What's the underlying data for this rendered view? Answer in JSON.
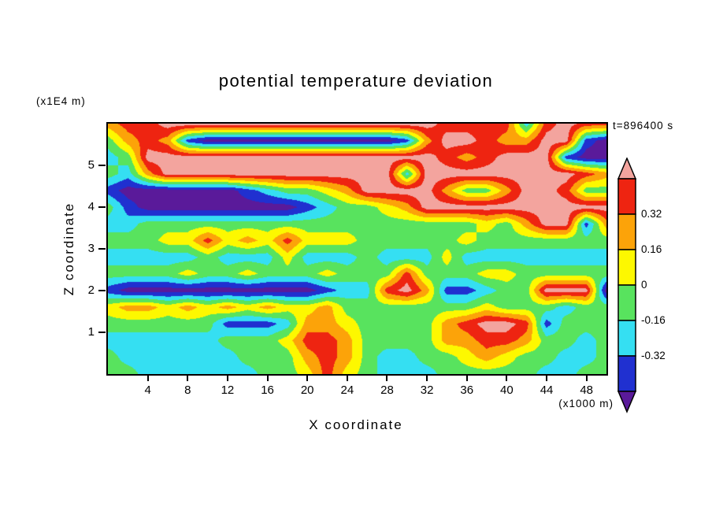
{
  "chart": {
    "title": "potential temperature deviation",
    "timestamp": "t=896400 s"
  },
  "axes": {
    "x": {
      "label": "X coordinate",
      "unit": "(x1000 m)",
      "ticks": [
        4,
        8,
        12,
        16,
        20,
        24,
        28,
        32,
        36,
        40,
        44,
        48
      ],
      "range": [
        0,
        50
      ]
    },
    "y": {
      "label": "Z coordinate",
      "unit": "(x1E4 m)",
      "ticks": [
        1,
        2,
        3,
        4,
        5
      ],
      "range": [
        0,
        6
      ]
    }
  },
  "colorbar": {
    "labels": [
      "0.32",
      "0.16",
      "0",
      "-0.16",
      "-0.32"
    ],
    "segment_colors_top_to_bottom": [
      "#ee2411",
      "#fca309",
      "#fdf800",
      "#58e35e",
      "#35dff2",
      "#2030d0"
    ],
    "arrow_top_color": "#f3a49e",
    "arrow_bottom_color": "#5a1a9a"
  },
  "chart_data": {
    "type": "heatmap",
    "title": "potential temperature deviation",
    "xlabel": "X coordinate",
    "ylabel": "Z coordinate",
    "x_unit": "x1000 m",
    "z_unit": "x1E4 m",
    "timestamp_s": 896400,
    "x_range": [
      0,
      50
    ],
    "z_range": [
      0,
      6
    ],
    "levels": [
      -0.48,
      -0.32,
      -0.16,
      0,
      0.16,
      0.32,
      0.48
    ],
    "level_colors_low_to_high": [
      "#5a1a9a",
      "#2030d0",
      "#35dff2",
      "#58e35e",
      "#fdf800",
      "#fca309",
      "#ee2411",
      "#f3a49e"
    ],
    "grid_x": [
      0,
      2,
      4,
      6,
      8,
      10,
      12,
      14,
      16,
      18,
      20,
      22,
      24,
      26,
      28,
      30,
      32,
      34,
      36,
      38,
      40,
      42,
      44,
      46,
      48,
      50
    ],
    "grid_z_top_to_bottom": [
      5.9,
      5.45,
      5.0,
      4.55,
      4.2,
      3.85,
      3.5,
      3.1,
      2.8,
      2.45,
      2.1,
      1.7,
      1.3,
      0.85,
      0.45,
      0.05
    ],
    "values": [
      [
        0.24,
        0.4,
        0.4,
        0.56,
        0.56,
        0.56,
        0.56,
        0.56,
        0.56,
        0.56,
        0.56,
        0.56,
        0.56,
        0.56,
        0.56,
        0.56,
        0.56,
        0.4,
        0.4,
        0.4,
        0.4,
        -0.24,
        0.4,
        0.56,
        0.4,
        0.4
      ],
      [
        -0.08,
        0.24,
        0.4,
        0.24,
        -0.4,
        -0.56,
        -0.56,
        -0.56,
        -0.56,
        -0.56,
        -0.56,
        -0.56,
        -0.56,
        -0.56,
        -0.56,
        -0.4,
        0.24,
        0.56,
        0.56,
        0.4,
        0.24,
        0.24,
        0.56,
        0.56,
        -0.4,
        -0.56
      ],
      [
        -0.24,
        -0.08,
        0.56,
        0.56,
        0.56,
        0.56,
        0.56,
        0.56,
        0.56,
        0.56,
        0.56,
        0.56,
        0.56,
        0.56,
        0.56,
        0.56,
        0.56,
        0.4,
        0.24,
        0.4,
        0.56,
        0.56,
        0.56,
        -0.4,
        -0.56,
        -0.56
      ],
      [
        -0.08,
        -0.24,
        0.24,
        0.56,
        0.56,
        0.56,
        0.56,
        0.56,
        0.56,
        0.56,
        0.56,
        0.56,
        0.56,
        0.56,
        0.56,
        -0.24,
        0.56,
        0.56,
        0.56,
        0.56,
        0.56,
        0.56,
        0.56,
        0.56,
        0.4,
        0.24
      ],
      [
        -0.4,
        -0.56,
        -0.56,
        -0.56,
        -0.56,
        -0.56,
        -0.56,
        -0.4,
        -0.24,
        -0.08,
        -0.08,
        0.08,
        0.24,
        0.56,
        0.56,
        0.56,
        0.56,
        0.24,
        -0.08,
        -0.08,
        0.24,
        0.56,
        0.56,
        0.4,
        -0.08,
        -0.08
      ],
      [
        -0.08,
        -0.4,
        -0.56,
        -0.56,
        -0.56,
        -0.56,
        -0.56,
        -0.56,
        -0.56,
        -0.56,
        -0.4,
        -0.24,
        -0.08,
        -0.08,
        0.08,
        0.24,
        0.56,
        0.56,
        0.56,
        0.56,
        0.56,
        0.56,
        0.56,
        0.56,
        0.56,
        0.56
      ],
      [
        -0.24,
        -0.24,
        -0.08,
        -0.08,
        -0.08,
        -0.08,
        -0.08,
        -0.08,
        -0.08,
        -0.08,
        -0.08,
        -0.08,
        -0.08,
        -0.08,
        -0.08,
        -0.08,
        -0.08,
        -0.08,
        -0.08,
        0.08,
        -0.08,
        0.24,
        0.56,
        0.56,
        -0.4,
        0.24
      ],
      [
        -0.08,
        -0.08,
        -0.08,
        0.08,
        0.08,
        0.4,
        0.08,
        0.24,
        0.08,
        0.4,
        0.08,
        0.08,
        0.08,
        -0.08,
        -0.08,
        -0.08,
        -0.08,
        -0.08,
        0.08,
        -0.08,
        -0.08,
        -0.08,
        -0.08,
        -0.08,
        -0.08,
        -0.08
      ],
      [
        -0.24,
        -0.24,
        -0.24,
        -0.24,
        -0.24,
        -0.08,
        -0.24,
        -0.24,
        -0.24,
        0.08,
        -0.24,
        -0.24,
        -0.24,
        -0.08,
        -0.24,
        -0.24,
        -0.24,
        0.08,
        -0.24,
        -0.24,
        -0.24,
        -0.24,
        -0.24,
        -0.24,
        -0.24,
        -0.24
      ],
      [
        -0.08,
        -0.08,
        -0.08,
        -0.08,
        0.08,
        -0.08,
        -0.08,
        0.08,
        -0.08,
        -0.08,
        -0.08,
        0.08,
        -0.08,
        -0.08,
        -0.08,
        0.4,
        -0.08,
        -0.08,
        -0.08,
        0.08,
        0.08,
        -0.08,
        -0.08,
        -0.08,
        -0.08,
        -0.08
      ],
      [
        -0.4,
        -0.56,
        -0.56,
        -0.56,
        -0.56,
        -0.56,
        -0.56,
        -0.56,
        -0.56,
        -0.56,
        -0.56,
        -0.4,
        -0.24,
        -0.24,
        0.4,
        0.56,
        0.24,
        -0.4,
        -0.4,
        -0.24,
        -0.08,
        -0.08,
        0.56,
        0.56,
        0.56,
        -0.56
      ],
      [
        0.08,
        0.24,
        0.24,
        0.08,
        0.24,
        0.08,
        0.24,
        0.08,
        0.24,
        0.08,
        0.08,
        0.24,
        -0.08,
        -0.08,
        -0.08,
        -0.08,
        -0.08,
        -0.08,
        -0.08,
        0.08,
        -0.08,
        -0.08,
        -0.08,
        -0.24,
        -0.08,
        -0.08
      ],
      [
        -0.08,
        -0.08,
        -0.08,
        -0.08,
        -0.08,
        -0.08,
        -0.4,
        -0.4,
        -0.4,
        -0.24,
        0.24,
        0.24,
        0.08,
        -0.08,
        -0.08,
        -0.08,
        -0.08,
        0.24,
        0.4,
        0.56,
        0.56,
        0.4,
        -0.4,
        -0.08,
        -0.08,
        -0.08
      ],
      [
        -0.24,
        -0.24,
        -0.24,
        -0.24,
        -0.24,
        -0.24,
        -0.08,
        -0.08,
        -0.08,
        0.08,
        0.4,
        0.4,
        0.24,
        -0.08,
        -0.08,
        -0.08,
        -0.08,
        0.24,
        0.24,
        0.4,
        0.4,
        0.24,
        -0.08,
        -0.08,
        -0.24,
        -0.08
      ],
      [
        -0.08,
        -0.24,
        -0.24,
        -0.24,
        -0.24,
        -0.24,
        -0.24,
        -0.08,
        -0.08,
        -0.08,
        0.24,
        0.4,
        0.24,
        -0.08,
        -0.24,
        -0.24,
        -0.08,
        -0.08,
        0.08,
        0.24,
        0.08,
        -0.08,
        -0.08,
        -0.24,
        -0.24,
        -0.08
      ],
      [
        -0.08,
        -0.08,
        -0.24,
        -0.24,
        -0.24,
        -0.24,
        -0.24,
        -0.24,
        -0.08,
        -0.08,
        0.08,
        0.4,
        0.08,
        -0.08,
        -0.24,
        -0.24,
        -0.24,
        -0.08,
        -0.08,
        -0.08,
        -0.08,
        -0.08,
        -0.24,
        -0.24,
        -0.08,
        -0.08
      ]
    ]
  }
}
